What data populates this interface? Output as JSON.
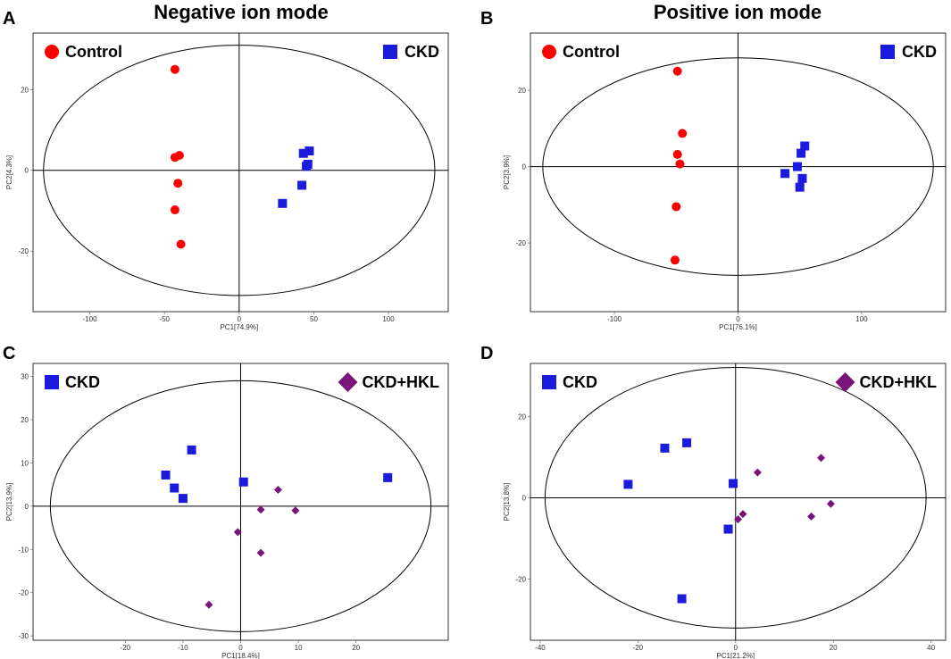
{
  "figure": {
    "column_titles": [
      "Negative ion mode",
      "Positive ion mode"
    ]
  },
  "chart_data": [
    {
      "panel": "A",
      "type": "scatter",
      "mode": "Negative ion mode",
      "xlabel": "PC1[74.9%]",
      "ylabel": "PC2[4.3%]",
      "xlim": [
        -138,
        140
      ],
      "ylim": [
        -35,
        34
      ],
      "xticks": [
        -100,
        -50,
        0,
        50,
        100
      ],
      "yticks": [
        -20,
        0,
        20
      ],
      "ellipse": {
        "cx": 0,
        "cy": 0,
        "rx": 131,
        "ry": 31
      },
      "legend": {
        "left": "Control",
        "right": "CKD"
      },
      "series": [
        {
          "name": "Control",
          "marker": "circle",
          "color": "#ff0000",
          "x": [
            -43,
            -43,
            -40,
            -41,
            -43,
            -39
          ],
          "y": [
            25,
            3.2,
            3.7,
            -3.2,
            -9.8,
            -18.3
          ]
        },
        {
          "name": "CKD",
          "marker": "square",
          "color": "#1b1bde",
          "x": [
            47,
            43,
            46,
            45,
            42,
            29
          ],
          "y": [
            4.8,
            4.2,
            1.5,
            1.0,
            -3.7,
            -8.2
          ]
        }
      ]
    },
    {
      "panel": "B",
      "type": "scatter",
      "mode": "Positive ion mode",
      "xlabel": "PC1[76.1%]",
      "ylabel": "PC2[3.9%]",
      "xlim": [
        -168,
        168
      ],
      "ylim": [
        -38,
        35
      ],
      "xticks": [
        -100,
        0,
        100
      ],
      "yticks": [
        -20,
        0,
        20
      ],
      "ellipse": {
        "cx": 0,
        "cy": 0,
        "rx": 158,
        "ry": 28.5
      },
      "legend": {
        "left": "Control",
        "right": "CKD"
      },
      "series": [
        {
          "name": "Control",
          "marker": "circle",
          "color": "#ff0000",
          "x": [
            -49,
            -45,
            -49,
            -47,
            -50,
            -51
          ],
          "y": [
            25,
            8.7,
            3.2,
            0.7,
            -10.5,
            -24.5
          ]
        },
        {
          "name": "CKD",
          "marker": "square",
          "color": "#1b1bde",
          "x": [
            54,
            51,
            48,
            52,
            50,
            38
          ],
          "y": [
            5.4,
            3.5,
            0,
            -3.1,
            -5.4,
            -1.8
          ]
        }
      ]
    },
    {
      "panel": "C",
      "type": "scatter",
      "mode": "Negative ion mode",
      "xlabel": "PC1[18.4%]",
      "ylabel": "PC2[13.9%]",
      "xlim": [
        -36,
        36
      ],
      "ylim": [
        -31,
        33
      ],
      "xticks": [
        -20,
        -10,
        0,
        10,
        20
      ],
      "yticks": [
        -30,
        -20,
        -10,
        0,
        10,
        20,
        30
      ],
      "ellipse": {
        "cx": 0,
        "cy": 0,
        "rx": 33,
        "ry": 29
      },
      "legend": {
        "left": "CKD",
        "right": "CKD+HKL"
      },
      "series": [
        {
          "name": "CKD",
          "marker": "square",
          "color": "#1b1bde",
          "x": [
            -8.5,
            -13,
            -11.5,
            -10,
            0.5,
            25.5
          ],
          "y": [
            13,
            7.2,
            4.2,
            1.8,
            5.6,
            6.6
          ]
        },
        {
          "name": "CKD+HKL",
          "marker": "diamond",
          "color": "#7a137a",
          "x": [
            6.5,
            3.5,
            9.5,
            -0.5,
            3.5,
            -5.5
          ],
          "y": [
            3.8,
            -0.8,
            -1,
            -6,
            -10.8,
            -22.8
          ]
        }
      ]
    },
    {
      "panel": "D",
      "type": "scatter",
      "mode": "Positive ion mode",
      "xlabel": "PC1[21.2%]",
      "ylabel": "PC2[13.8%]",
      "xlim": [
        -42,
        43
      ],
      "ylim": [
        -35,
        33
      ],
      "xticks": [
        -40,
        -20,
        0,
        20,
        40
      ],
      "yticks": [
        -20,
        0,
        20
      ],
      "ellipse": {
        "cx": 0,
        "cy": 0,
        "rx": 39,
        "ry": 32
      },
      "legend": {
        "left": "CKD",
        "right": "CKD+HKL"
      },
      "series": [
        {
          "name": "CKD",
          "marker": "square",
          "color": "#1b1bde",
          "x": [
            -10,
            -14.5,
            -22,
            -0.5,
            -1.5,
            -11
          ],
          "y": [
            13.5,
            12.2,
            3.3,
            3.5,
            -7.7,
            -24.8
          ]
        },
        {
          "name": "CKD+HKL",
          "marker": "diamond",
          "color": "#7a137a",
          "x": [
            4.5,
            17.5,
            19.5,
            1.5,
            0.5,
            15.5
          ],
          "y": [
            6.2,
            9.8,
            -1.5,
            -4,
            -5.3,
            -4.6
          ]
        }
      ]
    }
  ]
}
